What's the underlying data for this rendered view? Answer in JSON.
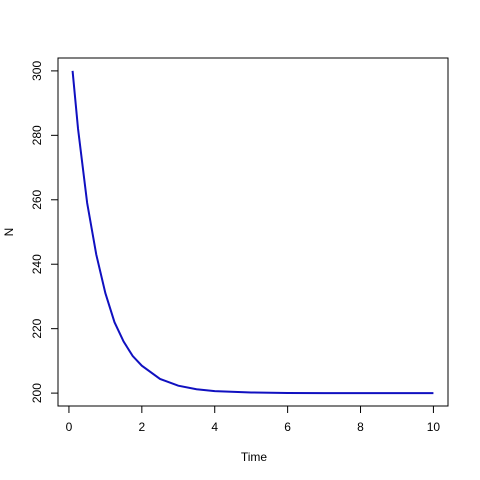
{
  "chart_data": {
    "type": "line",
    "x_label": "Time",
    "y_label": "N",
    "x": [
      0.1,
      0.25,
      0.5,
      0.75,
      1,
      1.25,
      1.5,
      1.75,
      2,
      2.5,
      3,
      3.5,
      4,
      5,
      6,
      7,
      8,
      9,
      10
    ],
    "series": [
      {
        "name": "N",
        "color": "#1010c0",
        "values": [
          300,
          282,
          259,
          243,
          231,
          222,
          216,
          211.5,
          208.5,
          204.4,
          202.3,
          201.2,
          200.6,
          200.2,
          200.05,
          200,
          200,
          200,
          200
        ]
      }
    ],
    "xlim": [
      -0.3,
      10.4
    ],
    "ylim": [
      196,
      304
    ],
    "xticks": [
      0,
      2,
      4,
      6,
      8,
      10
    ],
    "yticks": [
      200,
      220,
      240,
      260,
      280,
      300
    ]
  }
}
